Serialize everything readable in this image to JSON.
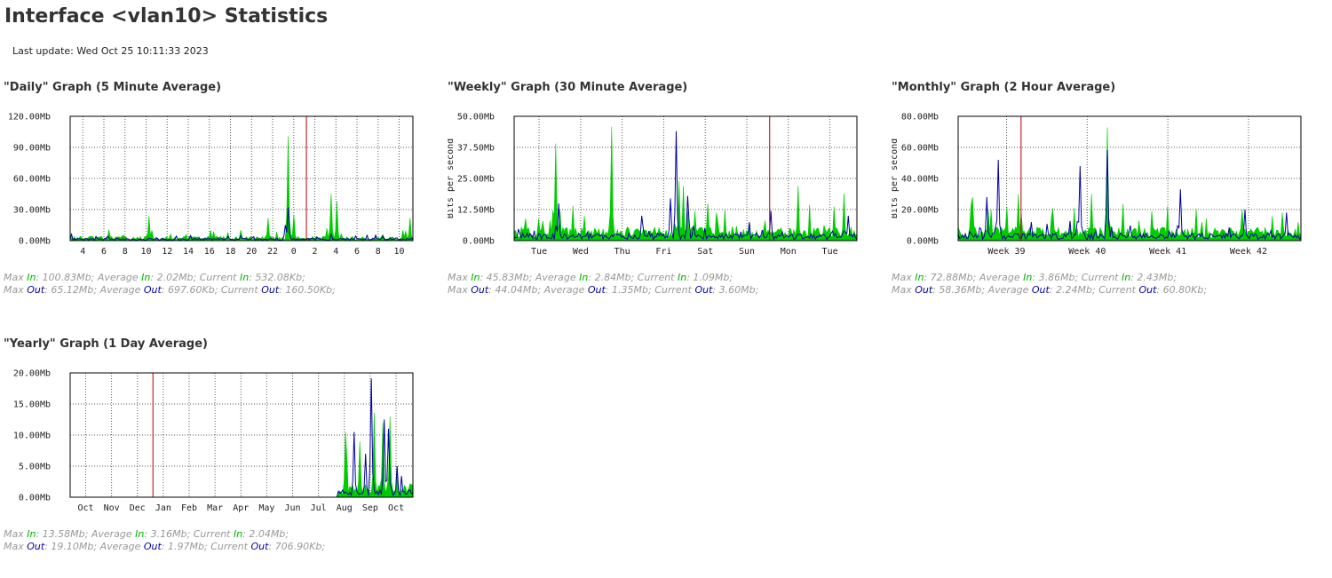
{
  "page": {
    "title": "Interface <vlan10> Statistics",
    "last_update": "Last update: Wed Oct 25 10:11:33 2023"
  },
  "labels": {
    "max": "Max ",
    "average": "; Average ",
    "current": "; Current ",
    "in": "In",
    "out": "Out",
    "end": ";",
    "ylabel": "Bits per second"
  },
  "colors": {
    "in": "#00cc00",
    "out": "#0000a0",
    "now_marker": "#bb0000",
    "grid": "#555555"
  },
  "graphs": [
    {
      "id": "daily",
      "title": "\"Daily\" Graph (5 Minute Average)",
      "stats": {
        "in_max": ": 100.83Mb",
        "in_avg": ": 2.02Mb",
        "in_cur": ": 532.08Kb",
        "out_max": ": 65.12Mb",
        "out_avg": ": 697.60Kb",
        "out_cur": ": 160.50Kb"
      },
      "chart_data": {
        "type": "area",
        "ylabel": "",
        "ylim": [
          0,
          120
        ],
        "y_ticks": [
          "0.00Mb",
          "30.00Mb",
          "60.00Mb",
          "90.00Mb",
          "120.00Mb"
        ],
        "x_ticks": [
          "4",
          "6",
          "8",
          "10",
          "12",
          "14",
          "16",
          "18",
          "20",
          "22",
          "0",
          "2",
          "4",
          "6",
          "8",
          "10"
        ],
        "grid": "dotted",
        "now_marker_index": 10.6,
        "series": [
          {
            "name": "In",
            "peaks": [
              [
                3.15,
                24
              ],
              [
                6.05,
                10
              ],
              [
                8.75,
                22
              ],
              [
                9.7,
                100.83
              ],
              [
                9.95,
                25
              ],
              [
                11.55,
                12
              ],
              [
                11.7,
                45
              ],
              [
                12.0,
                38
              ],
              [
                15.1,
                10
              ],
              [
                15.45,
                22
              ]
            ]
          },
          {
            "name": "Out",
            "peaks": [
              [
                7.45,
                5
              ],
              [
                9.7,
                32
              ],
              [
                9.55,
                15
              ]
            ]
          }
        ]
      }
    },
    {
      "id": "weekly",
      "title": "\"Weekly\" Graph (30 Minute Average)",
      "stats": {
        "in_max": ": 45.83Mb",
        "in_avg": ": 2.84Mb",
        "in_cur": ": 1.09Mb",
        "out_max": ": 44.04Mb",
        "out_avg": ": 1.35Mb",
        "out_cur": ": 3.60Mb"
      },
      "chart_data": {
        "type": "area",
        "ylabel": "Bits per second",
        "ylim": [
          0,
          50
        ],
        "y_ticks": [
          "0.00Mb",
          "12.50Mb",
          "25.00Mb",
          "37.50Mb",
          "50.00Mb"
        ],
        "x_ticks": [
          "Tue",
          "Wed",
          "Thu",
          "Fri",
          "Sat",
          "Sun",
          "Mon",
          "Tue"
        ],
        "grid": "dotted",
        "now_marker_index": 5.55,
        "series": [
          {
            "name": "In",
            "peaks": [
              [
                0.4,
                39
              ],
              [
                0.8,
                14
              ],
              [
                1.75,
                45.83
              ],
              [
                3.35,
                24
              ],
              [
                3.45,
                22
              ],
              [
                4.05,
                15
              ],
              [
                5.4,
                8
              ],
              [
                6.2,
                22
              ],
              [
                7.3,
                19
              ],
              [
                3.55,
                12
              ]
            ]
          },
          {
            "name": "Out",
            "peaks": [
              [
                0.48,
                15
              ],
              [
                3.3,
                44.04
              ],
              [
                3.15,
                17
              ],
              [
                2.45,
                10
              ],
              [
                3.55,
                18
              ],
              [
                5.55,
                12
              ],
              [
                7.4,
                10
              ]
            ]
          }
        ]
      }
    },
    {
      "id": "monthly",
      "title": "\"Monthly\" Graph (2 Hour Average)",
      "stats": {
        "in_max": ": 72.88Mb",
        "in_avg": ": 3.86Mb",
        "in_cur": ": 2.43Mb",
        "out_max": ": 58.36Mb",
        "out_avg": ": 2.24Mb",
        "out_cur": ": 60.80Kb"
      },
      "chart_data": {
        "type": "area",
        "ylabel": "Bits per second",
        "ylim": [
          0,
          80
        ],
        "y_ticks": [
          "0.00Mb",
          "20.00Mb",
          "40.00Mb",
          "60.00Mb",
          "80.00Mb"
        ],
        "x_ticks": [
          "Week 39",
          "Week 40",
          "Week 41",
          "Week 42"
        ],
        "grid": "dotted",
        "now_marker_index": 0.18,
        "series": [
          {
            "name": "In",
            "peaks": [
              [
                -0.42,
                28
              ],
              [
                -0.2,
                20
              ],
              [
                0.15,
                30
              ],
              [
                1.25,
                72.88
              ],
              [
                1.05,
                30
              ],
              [
                2.9,
                20
              ],
              [
                3.4,
                18
              ],
              [
                0.55,
                15
              ]
            ]
          },
          {
            "name": "Out",
            "peaks": [
              [
                -0.1,
                52
              ],
              [
                -0.25,
                28
              ],
              [
                0.9,
                48
              ],
              [
                1.25,
                58.36
              ],
              [
                2.15,
                33
              ],
              [
                2.95,
                20
              ],
              [
                3.45,
                18
              ],
              [
                0.3,
                12
              ]
            ]
          }
        ]
      }
    },
    {
      "id": "yearly",
      "title": "\"Yearly\" Graph (1 Day Average)",
      "stats": {
        "in_max": ": 13.58Mb",
        "in_avg": ": 3.16Mb",
        "in_cur": ": 2.04Mb",
        "out_max": ": 19.10Mb",
        "out_avg": ": 1.97Mb",
        "out_cur": ": 706.90Kb"
      },
      "chart_data": {
        "type": "area",
        "ylabel": "",
        "ylim": [
          0,
          20
        ],
        "y_ticks": [
          "0.00Mb",
          "5.00Mb",
          "10.00Mb",
          "15.00Mb",
          "20.00Mb"
        ],
        "x_ticks": [
          "Oct",
          "Nov",
          "Dec",
          "Jan",
          "Feb",
          "Mar",
          "Apr",
          "May",
          "Jun",
          "Jul",
          "Aug",
          "Sep",
          "Oct"
        ],
        "grid": "dotted",
        "now_marker_index": 2.6,
        "series": [
          {
            "name": "In",
            "peaks": [
              [
                10.0,
                10.5
              ],
              [
                10.55,
                9
              ],
              [
                11.1,
                13.58
              ],
              [
                11.7,
                13
              ],
              [
                11.45,
                12
              ],
              [
                12.0,
                5
              ]
            ]
          },
          {
            "name": "Out",
            "peaks": [
              [
                10.35,
                10.5
              ],
              [
                11.0,
                19.1
              ],
              [
                11.5,
                12.5
              ],
              [
                11.65,
                11
              ],
              [
                10.75,
                7
              ],
              [
                12.0,
                5
              ]
            ]
          }
        ]
      }
    }
  ]
}
